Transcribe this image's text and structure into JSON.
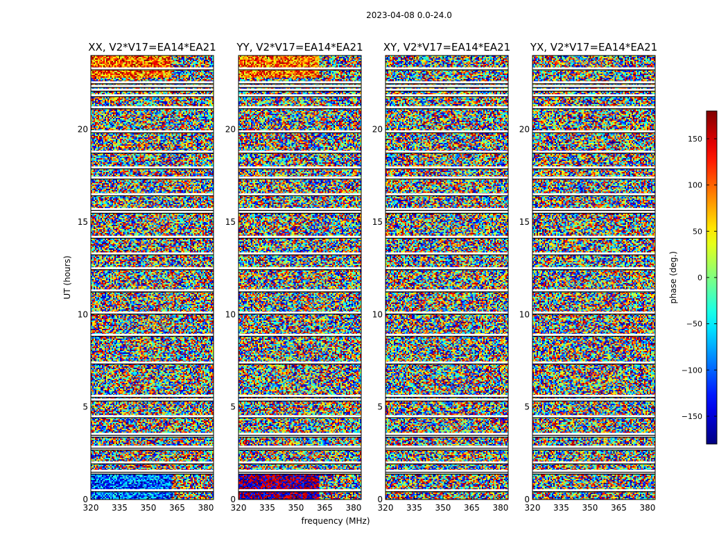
{
  "figure": {
    "suptitle": "2023-04-08 0.0-24.0",
    "xlabel": "frequency (MHz)",
    "ylabel": "UT (hours)",
    "colorbar_label": "phase (deg.)"
  },
  "chart_data": {
    "type": "heatmap",
    "colormap": "jet",
    "x_ticks": [
      "320",
      "335",
      "350",
      "365",
      "380"
    ],
    "y_ticks": [
      "0",
      "5",
      "10",
      "15",
      "20"
    ],
    "xlim": [
      320,
      384
    ],
    "ylim": [
      0,
      24
    ],
    "colorbar": {
      "range": [
        -180,
        180
      ],
      "ticks": [
        "150",
        "100",
        "50",
        "0",
        "−50",
        "−100",
        "−150"
      ]
    },
    "panels": [
      {
        "title": "XX, V2*V17=EA14*EA21"
      },
      {
        "title": "YY, V2*V17=EA14*EA21"
      },
      {
        "title": "XY, V2*V17=EA14*EA21"
      },
      {
        "title": "YX, V2*V17=EA14*EA21"
      }
    ],
    "gaps_hours": [
      0.5,
      1.45,
      1.55,
      2.0,
      2.75,
      2.85,
      3.45,
      3.55,
      4.5,
      5.4,
      5.6,
      7.4,
      8.9,
      10.1,
      11.3,
      12.5,
      13.3,
      14.2,
      15.55,
      15.7,
      16.5,
      17.4,
      17.95,
      18.8,
      19.9,
      21.2,
      21.85,
      22.15,
      22.35,
      22.55,
      23.3
    ]
  }
}
